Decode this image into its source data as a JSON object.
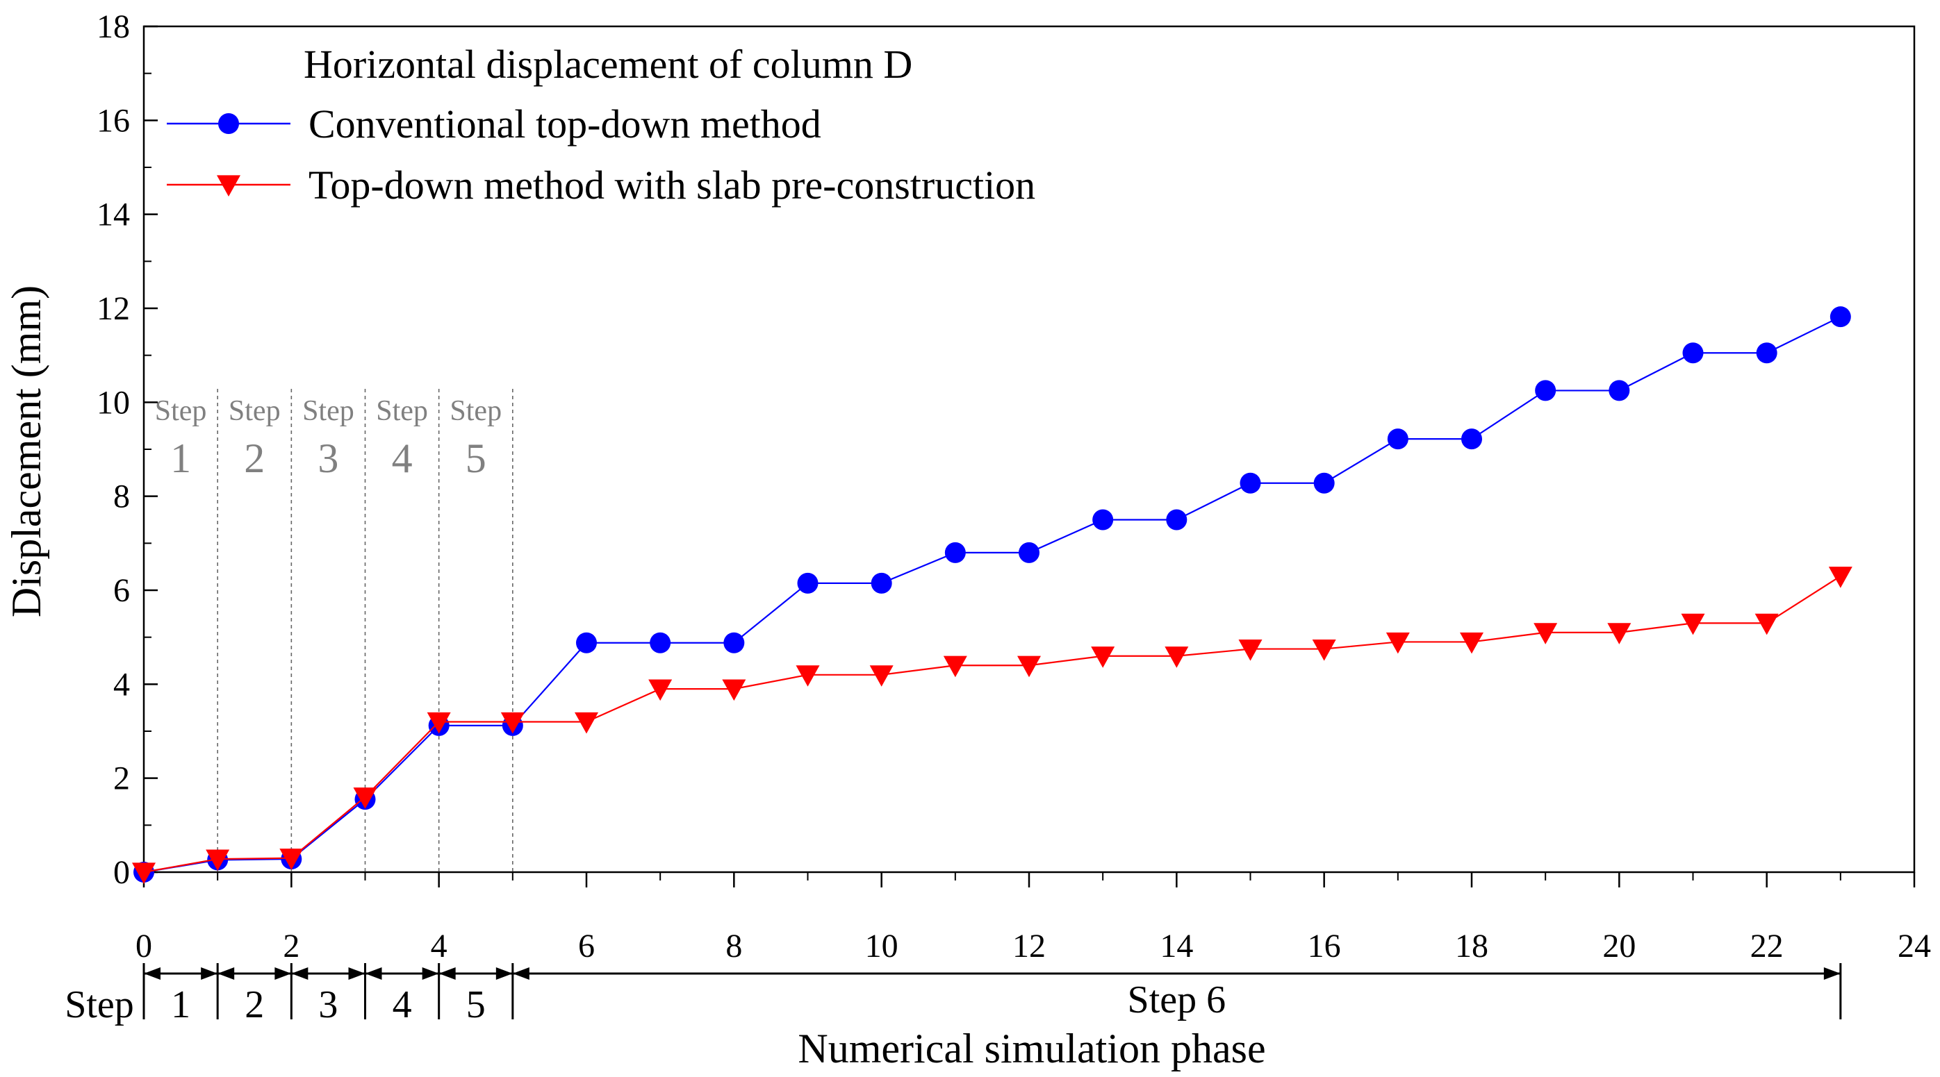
{
  "chart_data": {
    "type": "line",
    "title": "",
    "xlabel": "Numerical simulation phase",
    "ylabel": "Displacement (mm)",
    "xlim": [
      0,
      24
    ],
    "ylim": [
      0,
      18
    ],
    "x_ticks": [
      0,
      2,
      4,
      6,
      8,
      10,
      12,
      14,
      16,
      18,
      20,
      22,
      24
    ],
    "y_ticks": [
      0,
      2,
      4,
      6,
      8,
      10,
      12,
      14,
      16,
      18
    ],
    "grid": false,
    "legend_title": "Horizontal displacement of column D",
    "legend_position": "top-left",
    "series": [
      {
        "name": "Conventional top-down method",
        "color": "#0000ff",
        "marker": "circle",
        "x": [
          0,
          1,
          2,
          3,
          4,
          5,
          6,
          7,
          8,
          9,
          10,
          11,
          12,
          13,
          14,
          15,
          16,
          17,
          18,
          19,
          20,
          21,
          22,
          23
        ],
        "y": [
          0,
          0.26,
          0.28,
          1.55,
          3.12,
          3.12,
          4.88,
          4.88,
          4.88,
          6.15,
          6.15,
          6.8,
          6.8,
          7.5,
          7.5,
          8.28,
          8.28,
          9.22,
          9.22,
          10.25,
          10.25,
          11.05,
          11.05,
          11.82
        ]
      },
      {
        "name": "Top-down method with slab pre-construction",
        "color": "#ff0000",
        "marker": "triangle-down",
        "x": [
          0,
          1,
          2,
          3,
          4,
          5,
          6,
          7,
          8,
          9,
          10,
          11,
          12,
          13,
          14,
          15,
          16,
          17,
          18,
          19,
          20,
          21,
          22,
          23
        ],
        "y": [
          0,
          0.28,
          0.3,
          1.6,
          3.2,
          3.2,
          3.2,
          3.9,
          3.9,
          4.2,
          4.2,
          4.4,
          4.4,
          4.6,
          4.6,
          4.75,
          4.75,
          4.9,
          4.9,
          5.1,
          5.1,
          5.3,
          5.3,
          6.3
        ]
      }
    ],
    "step_annotations": [
      {
        "word": "Step",
        "number": "1",
        "x_start": 0,
        "x_end": 1
      },
      {
        "word": "Step",
        "number": "2",
        "x_start": 1,
        "x_end": 2
      },
      {
        "word": "Step",
        "number": "3",
        "x_start": 2,
        "x_end": 3
      },
      {
        "word": "Step",
        "number": "4",
        "x_start": 3,
        "x_end": 4
      },
      {
        "word": "Step",
        "number": "5",
        "x_start": 4,
        "x_end": 5
      }
    ],
    "phase_bar": {
      "label": "Step",
      "segments": [
        {
          "label": "1",
          "x_start": 0,
          "x_end": 1
        },
        {
          "label": "2",
          "x_start": 1,
          "x_end": 2
        },
        {
          "label": "3",
          "x_start": 2,
          "x_end": 3
        },
        {
          "label": "4",
          "x_start": 3,
          "x_end": 4
        },
        {
          "label": "5",
          "x_start": 4,
          "x_end": 5
        },
        {
          "label": "Step 6",
          "x_start": 5,
          "x_end": 23
        }
      ]
    }
  }
}
